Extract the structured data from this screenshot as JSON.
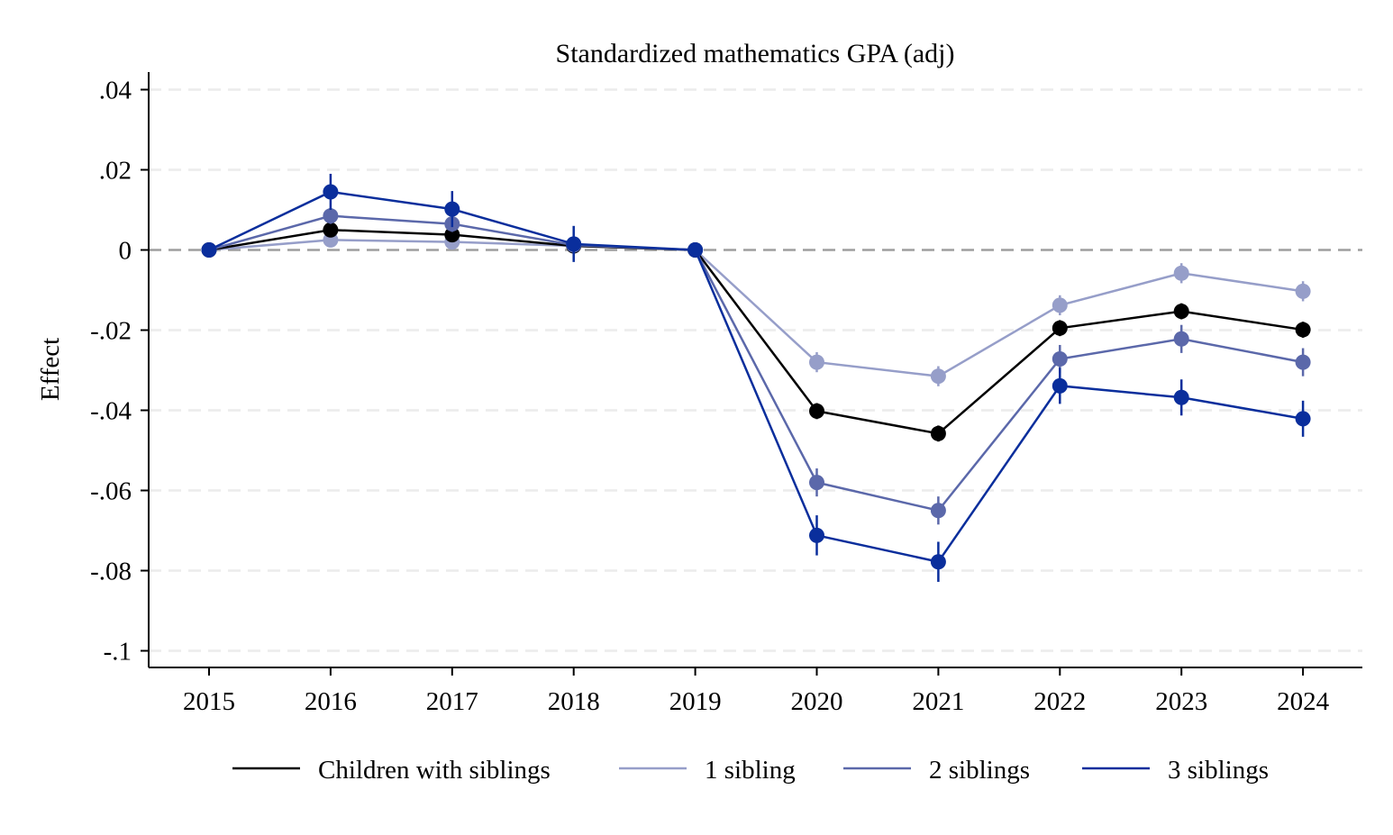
{
  "chart_data": {
    "type": "line",
    "title": "Standardized mathematics GPA (adj)",
    "xlabel": "",
    "ylabel": "Effect",
    "categories": [
      "2015",
      "2016",
      "2017",
      "2018",
      "2019",
      "2020",
      "2021",
      "2022",
      "2023",
      "2024"
    ],
    "x_ticks": [
      "2015",
      "2016",
      "2017",
      "2018",
      "2019",
      "2020",
      "2021",
      "2022",
      "2023",
      "2024"
    ],
    "y_ticks": [
      0.04,
      0.02,
      0,
      -0.02,
      -0.04,
      -0.06,
      -0.08,
      -0.1
    ],
    "y_tick_labels": [
      ".04",
      ".02",
      "0",
      "-.02",
      "-.04",
      "-.06",
      "-.08",
      "-.1"
    ],
    "ylim": [
      -0.1,
      0.04
    ],
    "grid": "horizontal dashed",
    "reference_line": 0,
    "legend_position": "bottom",
    "error_bars": true,
    "series": [
      {
        "name": "1 sibling",
        "color": "#969ec9",
        "values": [
          0,
          0.0025,
          0.002,
          0.001,
          0,
          -0.028,
          -0.0315,
          -0.0138,
          -0.0058,
          -0.0103
        ],
        "ci_halfwidth": [
          0,
          0.0015,
          0.0015,
          0.0015,
          0,
          0.0025,
          0.0025,
          0.0025,
          0.0025,
          0.0025
        ]
      },
      {
        "name": "Children with siblings",
        "color": "#000000",
        "values": [
          0,
          0.005,
          0.0038,
          0.001,
          0,
          -0.0402,
          -0.0458,
          -0.0195,
          -0.0153,
          -0.0199
        ],
        "ci_halfwidth": [
          0,
          0.0015,
          0.0015,
          0.0015,
          0,
          0.002,
          0.002,
          0.002,
          0.002,
          0.002
        ]
      },
      {
        "name": "2 siblings",
        "color": "#5b68aa",
        "values": [
          0,
          0.0085,
          0.0065,
          0.0012,
          0,
          -0.058,
          -0.065,
          -0.0272,
          -0.0222,
          -0.028
        ],
        "ci_halfwidth": [
          0,
          0.002,
          0.002,
          0.002,
          0,
          0.0035,
          0.0035,
          0.0035,
          0.0035,
          0.0035
        ]
      },
      {
        "name": "3 siblings",
        "color": "#0a2e9c",
        "values": [
          0,
          0.0145,
          0.0102,
          0.0015,
          0,
          -0.0712,
          -0.0778,
          -0.0339,
          -0.0368,
          -0.0421
        ],
        "ci_halfwidth": [
          0,
          0.0045,
          0.0045,
          0.0045,
          0,
          0.005,
          0.005,
          0.0045,
          0.0045,
          0.0045
        ]
      }
    ],
    "legend_order": [
      "Children with siblings",
      "1 sibling",
      "2 siblings",
      "3 siblings"
    ]
  }
}
